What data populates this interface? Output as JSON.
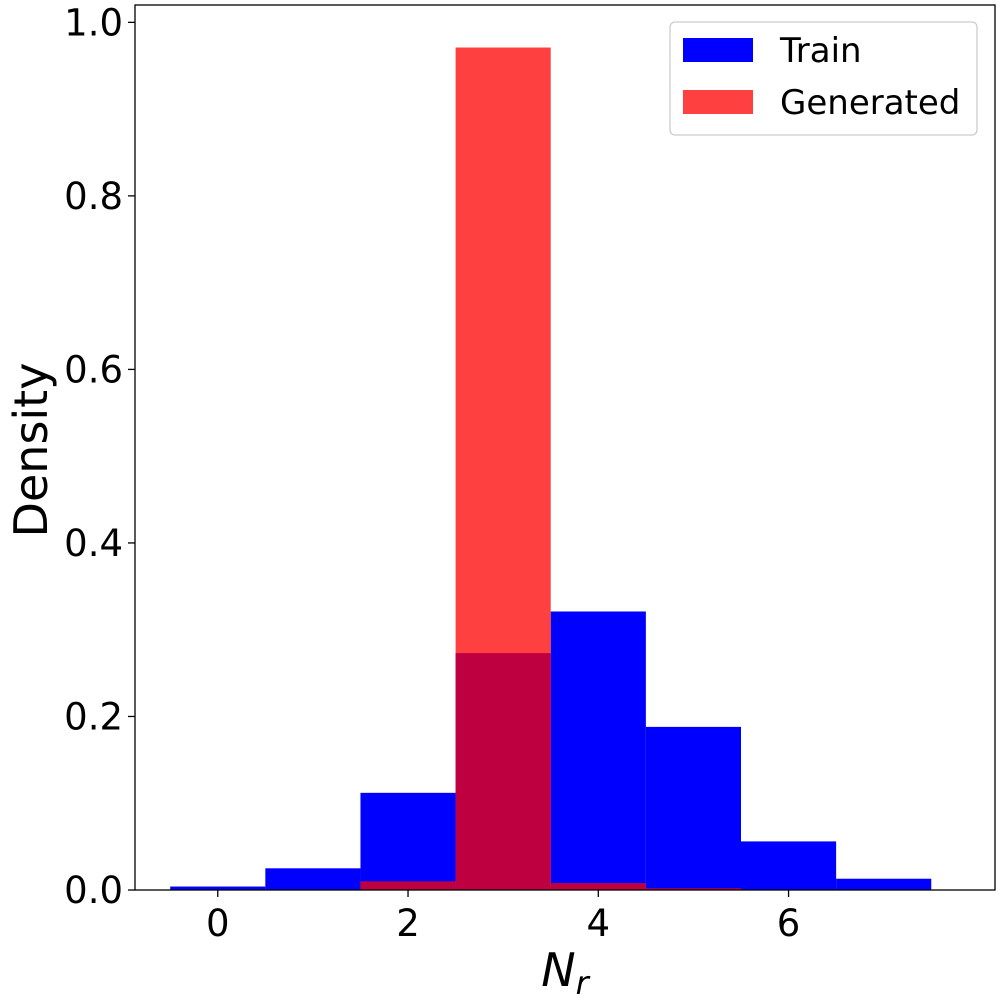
{
  "chart_data": {
    "type": "bar",
    "title": "",
    "xlabel": "N",
    "xlabel_sub": "r",
    "ylabel": "Density",
    "xlim": [
      -0.87,
      8.17
    ],
    "ylim": [
      0.0,
      1.02
    ],
    "xticks": [
      0,
      2,
      4,
      6
    ],
    "xtick_labels": [
      "0",
      "2",
      "4",
      "6"
    ],
    "yticks": [
      0.0,
      0.2,
      0.4,
      0.6,
      0.8,
      1.0
    ],
    "ytick_labels": [
      "0.0",
      "0.2",
      "0.4",
      "0.6",
      "0.8",
      "1.0"
    ],
    "bin_width": 1,
    "grid": false,
    "legend_position": "top-right",
    "series": [
      {
        "name": "Train",
        "color": "#0000ff",
        "opacity": 1.0,
        "x": [
          0,
          1,
          2,
          3,
          4,
          5,
          6,
          7
        ],
        "values": [
          0.004,
          0.025,
          0.112,
          0.273,
          0.321,
          0.188,
          0.056,
          0.013
        ]
      },
      {
        "name": "Generated",
        "color": "#ff0000",
        "opacity": 0.75,
        "x": [
          2,
          3,
          4,
          5
        ],
        "values": [
          0.01,
          0.971,
          0.008,
          0.002
        ]
      }
    ]
  }
}
